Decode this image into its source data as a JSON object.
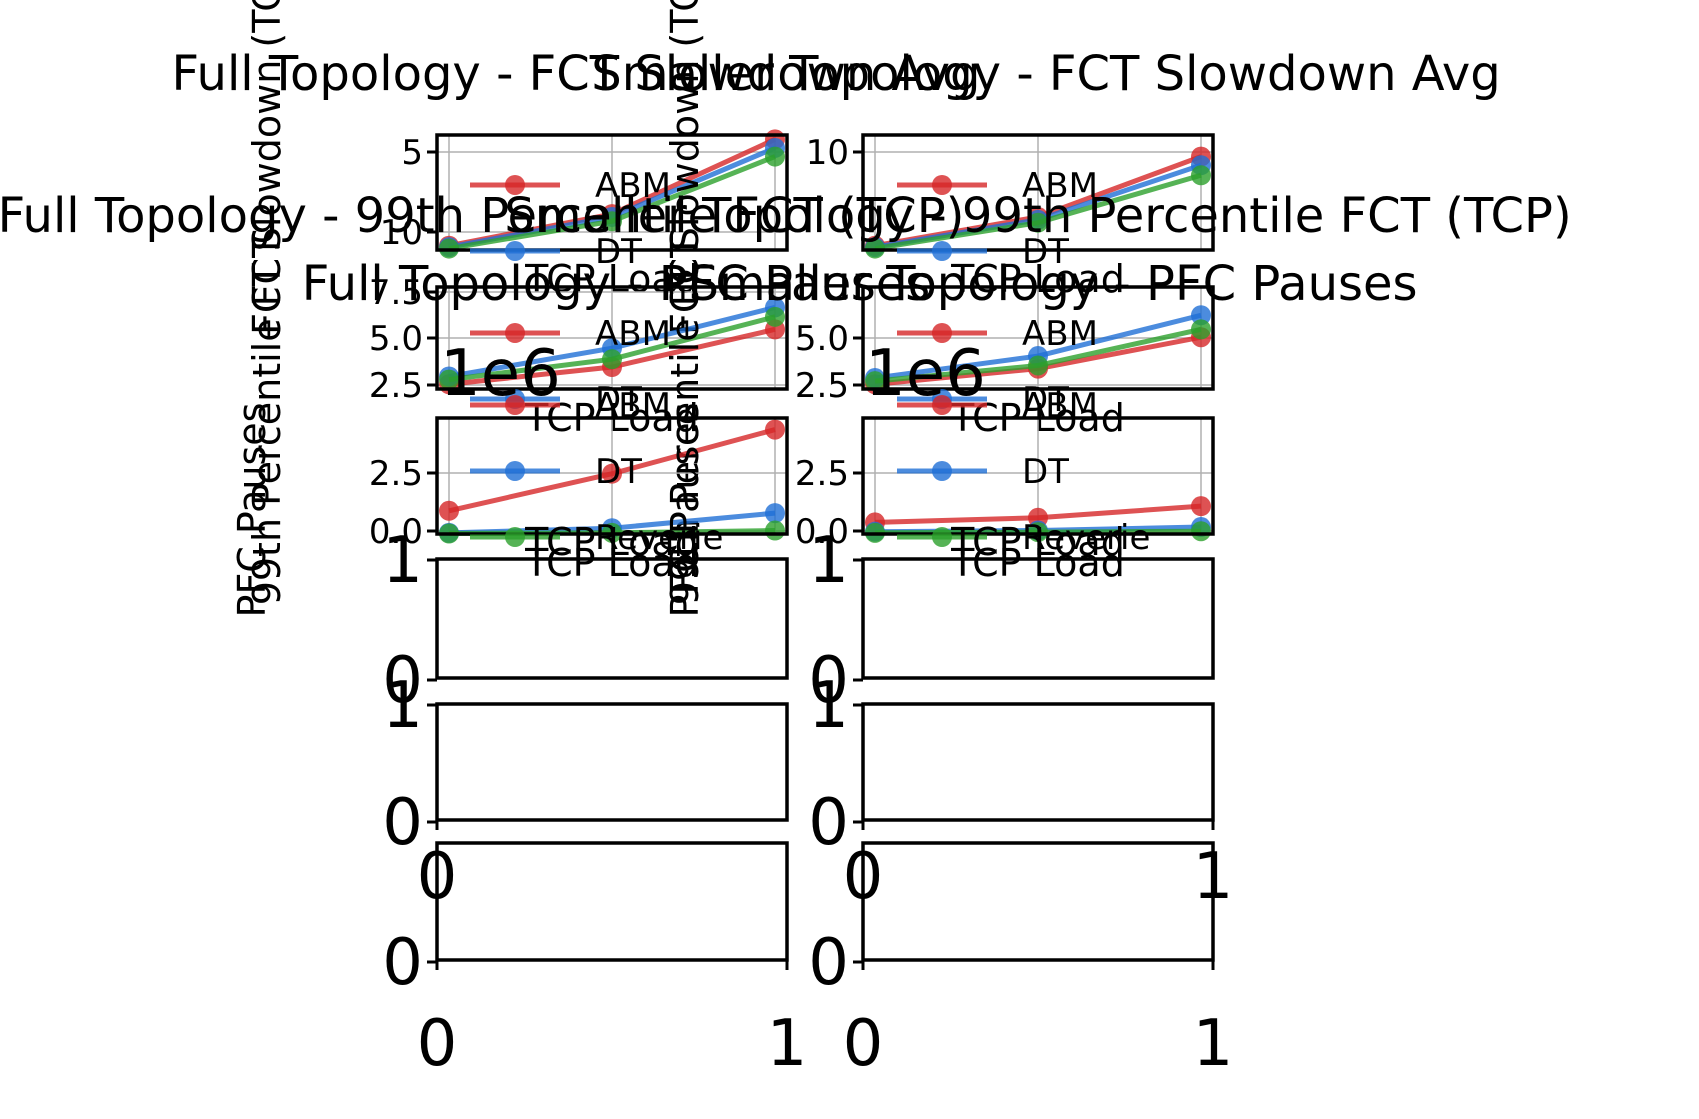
{
  "figure": {
    "colors": {
      "ABM": "#d62728",
      "DT": "#1f6fd6",
      "Reverie": "#2ca02c",
      "grid": "#b0b0b0"
    }
  },
  "chart_data": [
    {
      "id": "fct-full",
      "type": "line",
      "title": "Full Topology - FCT Slowdown Avg",
      "ylabel": "FCT Slowdown (TCP) Avg",
      "xlabel": "TCP Load",
      "x_ticks": [],
      "y_ticks": [
        "5",
        "10"
      ],
      "xlim": [
        0.2,
        0.8
      ],
      "ylim": [
        3.5,
        11.5
      ],
      "x": [
        0.2,
        0.5,
        0.8
      ],
      "series": [
        {
          "name": "ABM",
          "color": "#d62728",
          "values": [
            3.8,
            6.0,
            11.2
          ]
        },
        {
          "name": "DT",
          "color": "#1f6fd6",
          "values": [
            3.7,
            5.8,
            10.6
          ]
        },
        {
          "name": "Reverie",
          "color": "#2ca02c",
          "values": [
            3.6,
            5.5,
            10.0
          ]
        }
      ],
      "legend": [
        "ABM",
        "DT"
      ],
      "grid": true
    },
    {
      "id": "fct-smaller",
      "type": "line",
      "title": "Smaller Topology - FCT Slowdown Avg",
      "ylabel": "FCT Slowdown (TCP) Avg",
      "xlabel": "TCP Load",
      "x_ticks": [],
      "y_ticks": [
        "10"
      ],
      "xlim": [
        0.2,
        0.8
      ],
      "ylim": [
        3.5,
        11.5
      ],
      "x": [
        0.2,
        0.5,
        0.8
      ],
      "series": [
        {
          "name": "ABM",
          "color": "#d62728",
          "values": [
            3.8,
            5.8,
            10.0
          ]
        },
        {
          "name": "DT",
          "color": "#1f6fd6",
          "values": [
            3.7,
            5.6,
            9.4
          ]
        },
        {
          "name": "Reverie",
          "color": "#2ca02c",
          "values": [
            3.6,
            5.4,
            8.7
          ]
        }
      ],
      "legend": [
        "ABM",
        "DT"
      ],
      "grid": true
    },
    {
      "id": "p99-full",
      "type": "line",
      "title": "Full Topology - 99th Percentile FCT (TCP)",
      "ylabel": "99th Percentile FCT",
      "xlabel": "TCP Load",
      "x_ticks": [],
      "y_ticks": [
        "2.5",
        "5.0",
        "7.5"
      ],
      "xlim": [
        0.2,
        0.8
      ],
      "ylim": [
        2.0,
        8.5
      ],
      "x": [
        0.2,
        0.5,
        0.8
      ],
      "series": [
        {
          "name": "ABM",
          "color": "#d62728",
          "values": [
            2.3,
            3.4,
            5.8
          ]
        },
        {
          "name": "DT",
          "color": "#1f6fd6",
          "values": [
            2.8,
            4.6,
            7.2
          ]
        },
        {
          "name": "Reverie",
          "color": "#2ca02c",
          "values": [
            2.6,
            3.9,
            6.6
          ]
        }
      ],
      "legend": [
        "ABM",
        "DT"
      ],
      "grid": true
    },
    {
      "id": "p99-smaller",
      "type": "line",
      "title": "Smaller Topology - 99th Percentile FCT (TCP)",
      "ylabel": "99th Percentile FCT",
      "xlabel": "TCP Load",
      "x_ticks": [],
      "y_ticks": [
        "2.5",
        "5.0"
      ],
      "xlim": [
        0.2,
        0.8
      ],
      "ylim": [
        2.0,
        8.5
      ],
      "x": [
        0.2,
        0.5,
        0.8
      ],
      "series": [
        {
          "name": "ABM",
          "color": "#d62728",
          "values": [
            2.3,
            3.3,
            5.3
          ]
        },
        {
          "name": "DT",
          "color": "#1f6fd6",
          "values": [
            2.7,
            4.1,
            6.7
          ]
        },
        {
          "name": "Reverie",
          "color": "#2ca02c",
          "values": [
            2.5,
            3.5,
            5.8
          ]
        }
      ],
      "legend": [
        "ABM",
        "DT"
      ],
      "grid": true
    },
    {
      "id": "pfc-full",
      "type": "line",
      "title": "Full Topology - PFC Pauses",
      "ylabel": "PFC Pauses",
      "xlabel": "TCP Load",
      "offset_label": "1e6",
      "x_ticks": [],
      "y_ticks": [
        "0.0",
        "2.5"
      ],
      "xlim": [
        0.2,
        0.8
      ],
      "ylim": [
        0.0,
        5.0
      ],
      "x": [
        0.2,
        0.5,
        0.8
      ],
      "series": [
        {
          "name": "ABM",
          "color": "#d62728",
          "values": [
            1.0,
            2.6,
            4.5
          ]
        },
        {
          "name": "DT",
          "color": "#1f6fd6",
          "values": [
            0.05,
            0.25,
            0.9
          ]
        },
        {
          "name": "Reverie",
          "color": "#2ca02c",
          "values": [
            0.02,
            0.05,
            0.15
          ]
        }
      ],
      "legend": [
        "ABM",
        "DT",
        "Reverie"
      ],
      "grid": true
    },
    {
      "id": "pfc-smaller",
      "type": "line",
      "title": "Smaller Topology - PFC Pauses",
      "ylabel": "PFC Pauses",
      "xlabel": "TCP Load",
      "offset_label": "1e6",
      "x_ticks": [],
      "y_ticks": [
        "0.0",
        "2.5"
      ],
      "xlim": [
        0.2,
        0.8
      ],
      "ylim": [
        0.0,
        5.0
      ],
      "x": [
        0.2,
        0.5,
        0.8
      ],
      "series": [
        {
          "name": "ABM",
          "color": "#d62728",
          "values": [
            0.5,
            0.7,
            1.2
          ]
        },
        {
          "name": "DT",
          "color": "#1f6fd6",
          "values": [
            0.1,
            0.15,
            0.3
          ]
        },
        {
          "name": "Reverie",
          "color": "#2ca02c",
          "values": [
            0.05,
            0.08,
            0.12
          ]
        }
      ],
      "legend": [
        "ABM",
        "DT",
        "Reverie"
      ],
      "grid": true
    },
    {
      "id": "empty-1-left",
      "type": "line",
      "title": "",
      "xlabel": "TCP Load",
      "x_ticks": [],
      "y_ticks": [
        "0",
        "1"
      ],
      "series": []
    },
    {
      "id": "empty-1-right",
      "type": "line",
      "title": "",
      "xlabel": "TCP Load",
      "x_ticks": [],
      "y_ticks": [
        "0",
        "1"
      ],
      "series": []
    },
    {
      "id": "empty-2-left",
      "type": "line",
      "title": "",
      "x_ticks": [
        "0"
      ],
      "y_ticks": [
        "0",
        "1"
      ],
      "series": []
    },
    {
      "id": "empty-2-right",
      "type": "line",
      "title": "",
      "x_ticks": [
        "0",
        "1"
      ],
      "y_ticks": [
        "0",
        "1"
      ],
      "series": []
    },
    {
      "id": "empty-3-left",
      "type": "line",
      "title": "",
      "x_ticks": [
        "0",
        "1"
      ],
      "y_ticks": [
        "0"
      ],
      "series": []
    },
    {
      "id": "empty-3-right",
      "type": "line",
      "title": "",
      "x_ticks": [
        "0",
        "1"
      ],
      "y_ticks": [
        "0"
      ],
      "series": []
    }
  ]
}
